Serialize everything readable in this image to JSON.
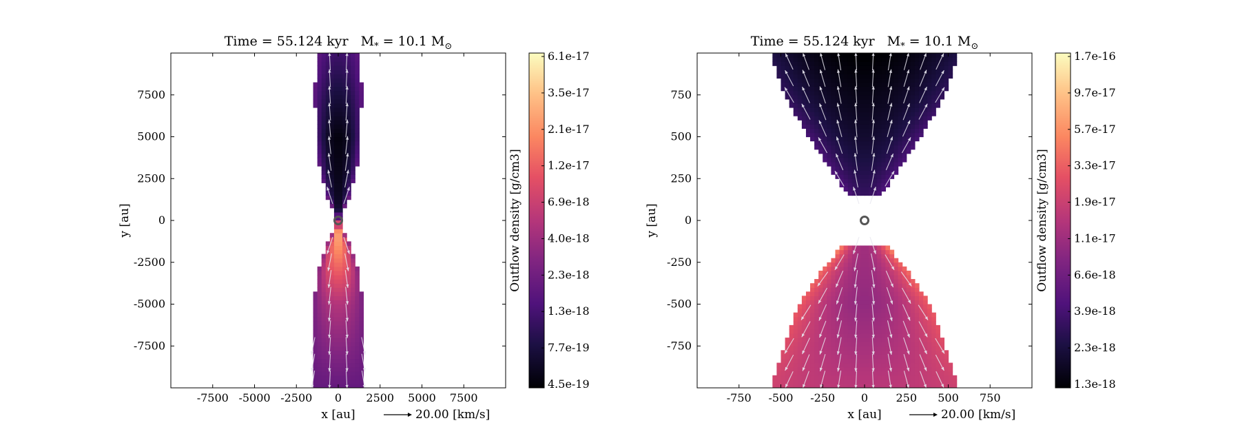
{
  "chart_data": [
    {
      "type": "heatmap",
      "title": "Time = 55.124 kyr    M$_*$ = 10.1 M$_\\odot$",
      "title_parts": {
        "time": "Time = 55.124 kyr",
        "mass_symbol": "M",
        "mass_sub": "*",
        "mass_value": "= 10.1 M",
        "mass_unit_sub": "⊙"
      },
      "xlabel": "x [au]",
      "ylabel": "y [au]",
      "xlim": [
        -10000,
        10000
      ],
      "ylim": [
        -10000,
        10000
      ],
      "xticks": [
        -7500,
        -5000,
        -2500,
        0,
        2500,
        5000,
        7500
      ],
      "xtick_labels": [
        "-7500",
        "-5000",
        "-2500",
        "0",
        "2500",
        "5000",
        "7500"
      ],
      "yticks": [
        7500,
        5000,
        2500,
        0,
        -2500,
        -5000,
        -7500
      ],
      "ytick_labels": [
        "7500",
        "5000",
        "2500",
        "0",
        "-2500",
        "-5000",
        "-7500"
      ],
      "quiver_key": {
        "label": "20.00 [km/s]",
        "value_kms": 20.0
      },
      "colorbar": {
        "label": "Outflow density [g/cm3]",
        "scale": "log",
        "colormap": "magma",
        "tick_labels": [
          "6.1e-17",
          "3.5e-17",
          "2.1e-17",
          "1.2e-17",
          "6.9e-18",
          "4.0e-18",
          "2.3e-18",
          "1.3e-18",
          "7.7e-19",
          "4.5e-19"
        ]
      },
      "upper_lobe": {
        "y_range": [
          0,
          10000
        ],
        "half_width_profile": [
          [
            400,
            150
          ],
          [
            1500,
            700
          ],
          [
            3000,
            1100
          ],
          [
            5000,
            1300
          ],
          [
            7500,
            1400
          ],
          [
            10000,
            1300
          ]
        ],
        "log_density_axis": [
          -18.2,
          -18.3,
          -17.9
        ],
        "log_density_edge": [
          -17.6,
          -17.8,
          -17.7
        ],
        "velocity": "radial outward"
      },
      "lower_lobe": {
        "y_range": [
          -10000,
          0
        ],
        "half_width_profile": [
          [
            -400,
            150
          ],
          [
            -1500,
            700
          ],
          [
            -3000,
            1200
          ],
          [
            -5000,
            1500
          ],
          [
            -7500,
            1600
          ],
          [
            -10000,
            1600
          ]
        ],
        "log_density_axis": [
          -16.4,
          -17.3,
          -17.7
        ],
        "log_density_edge": [
          -17.4,
          -17.6,
          -17.7
        ],
        "velocity": "radial outward"
      }
    },
    {
      "type": "heatmap",
      "title": "Time = 55.124 kyr    M$_*$ = 10.1 M$_\\odot$",
      "title_parts": {
        "time": "Time = 55.124 kyr",
        "mass_symbol": "M",
        "mass_sub": "*",
        "mass_value": "= 10.1 M",
        "mass_unit_sub": "⊙"
      },
      "xlabel": "x [au]",
      "ylabel": "y [au]",
      "xlim": [
        -1000,
        1000
      ],
      "ylim": [
        -1000,
        1000
      ],
      "xticks": [
        -750,
        -500,
        -250,
        0,
        250,
        500,
        750
      ],
      "xtick_labels": [
        "-750",
        "-500",
        "-250",
        "0",
        "250",
        "500",
        "750"
      ],
      "yticks": [
        750,
        500,
        250,
        0,
        -250,
        -500,
        -750
      ],
      "ytick_labels": [
        "750",
        "500",
        "250",
        "0",
        "-250",
        "-500",
        "-750"
      ],
      "quiver_key": {
        "label": "20.00 [km/s]",
        "value_kms": 20.0
      },
      "colorbar": {
        "label": "Outflow density [g/cm3]",
        "scale": "log",
        "colormap": "magma",
        "tick_labels": [
          "1.7e-16",
          "9.7e-17",
          "5.7e-17",
          "3.3e-17",
          "1.9e-17",
          "1.1e-17",
          "6.6e-18",
          "3.9e-18",
          "2.3e-18",
          "1.3e-18"
        ]
      },
      "upper_lobe": {
        "y_range": [
          150,
          1000
        ],
        "half_width_profile": [
          [
            150,
            100
          ],
          [
            300,
            200
          ],
          [
            500,
            330
          ],
          [
            750,
            480
          ],
          [
            1000,
            560
          ]
        ],
        "log_density_axis": [
          -17.4,
          -17.7,
          -17.9
        ],
        "log_density_edge": [
          -17.3,
          -17.4,
          -17.6
        ],
        "velocity": "radial outward"
      },
      "lower_lobe": {
        "y_range": [
          -1000,
          -150
        ],
        "half_width_profile": [
          [
            -150,
            130
          ],
          [
            -300,
            260
          ],
          [
            -500,
            390
          ],
          [
            -750,
            480
          ],
          [
            -1000,
            560
          ]
        ],
        "log_density_axis": [
          -16.9,
          -17.0,
          -16.8
        ],
        "log_density_edge": [
          -16.3,
          -16.5,
          -16.7
        ],
        "velocity": "radial outward"
      }
    }
  ]
}
